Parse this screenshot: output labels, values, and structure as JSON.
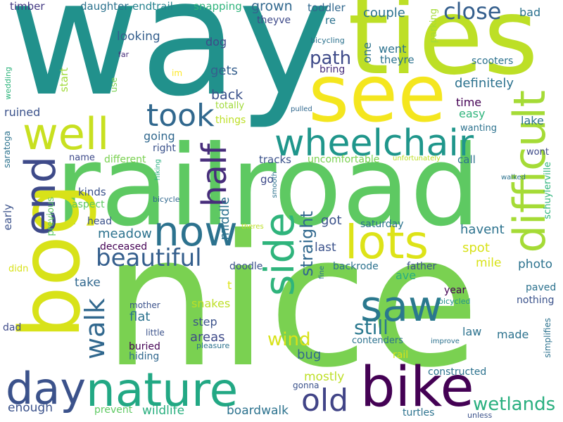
{
  "words": [
    {
      "id": "way",
      "text": "way",
      "color": "#21918c"
    },
    {
      "id": "ties",
      "text": "ties",
      "color": "#bddf26"
    },
    {
      "id": "see",
      "text": "see",
      "color": "#f4e61e"
    },
    {
      "id": "railroad",
      "text": "railroad",
      "color": "#5ec962"
    },
    {
      "id": "nice",
      "text": "nice",
      "color": "#7ad151"
    },
    {
      "id": "bog",
      "text": "bog",
      "color": "#d8e219"
    },
    {
      "id": "well",
      "text": "well",
      "color": "#c8e020"
    },
    {
      "id": "end",
      "text": "end",
      "color": "#3e4a89"
    },
    {
      "id": "took",
      "text": "took",
      "color": "#31688e"
    },
    {
      "id": "wheelchair",
      "text": "wheelchair",
      "color": "#1f968b"
    },
    {
      "id": "difficult",
      "text": "difficult",
      "color": "#a5db36"
    },
    {
      "id": "now",
      "text": "now",
      "color": "#2c728e"
    },
    {
      "id": "lots",
      "text": "lots",
      "color": "#dde318"
    },
    {
      "id": "half",
      "text": "half",
      "color": "#472d7b"
    },
    {
      "id": "side",
      "text": "side",
      "color": "#2fb47c"
    },
    {
      "id": "beautiful",
      "text": "beautiful",
      "color": "#355f8d"
    },
    {
      "id": "saw",
      "text": "saw",
      "color": "#2a788e"
    },
    {
      "id": "day",
      "text": "day",
      "color": "#3b528b"
    },
    {
      "id": "nature",
      "text": "nature",
      "color": "#22a884"
    },
    {
      "id": "bike",
      "text": "bike",
      "color": "#440154"
    },
    {
      "id": "walk",
      "text": "walk",
      "color": "#31688e"
    },
    {
      "id": "old",
      "text": "old",
      "color": "#414487"
    },
    {
      "id": "wetlands",
      "text": "wetlands",
      "color": "#29af7f"
    },
    {
      "id": "close",
      "text": "close",
      "color": "#355f8d"
    },
    {
      "id": "still",
      "text": "still",
      "color": "#2a788e"
    },
    {
      "id": "wind",
      "text": "wind",
      "color": "#d8e219"
    },
    {
      "id": "path",
      "text": "path",
      "color": "#3e4a89"
    },
    {
      "id": "straight",
      "text": "straight",
      "color": "#31688e"
    },
    {
      "id": "middle",
      "text": "middle",
      "color": "#2c728e"
    },
    {
      "id": "timber",
      "text": "timber",
      "color": "#443983"
    },
    {
      "id": "daughter",
      "text": "daughter",
      "color": "#2c728e"
    },
    {
      "id": "endtrail",
      "text": "endtrail",
      "color": "#26828e"
    },
    {
      "id": "snapping",
      "text": "snapping",
      "color": "#2fb47c"
    },
    {
      "id": "grown",
      "text": "grown",
      "color": "#31688e"
    },
    {
      "id": "theyve",
      "text": "theyve",
      "color": "#3e4a89"
    },
    {
      "id": "toddler",
      "text": "toddler",
      "color": "#31688e"
    },
    {
      "id": "re",
      "text": "re",
      "color": "#2c728e"
    },
    {
      "id": "couple",
      "text": "couple",
      "color": "#2c728e"
    },
    {
      "id": "parking",
      "text": "parking",
      "color": "#a5db36"
    },
    {
      "id": "bad",
      "text": "bad",
      "color": "#2c728e"
    },
    {
      "id": "looking",
      "text": "looking",
      "color": "#355f8d"
    },
    {
      "id": "dog",
      "text": "dog",
      "color": "#3e4a89"
    },
    {
      "id": "one",
      "text": "one",
      "color": "#2c728e"
    },
    {
      "id": "went",
      "text": "went",
      "color": "#2c728e"
    },
    {
      "id": "theyre",
      "text": "theyre",
      "color": "#2c728e"
    },
    {
      "id": "bicycling",
      "text": "bicycling",
      "color": "#2c728e"
    },
    {
      "id": "far",
      "text": "far",
      "color": "#472d7b"
    },
    {
      "id": "im",
      "text": "im",
      "color": "#fde725"
    },
    {
      "id": "use",
      "text": "use",
      "color": "#7ad151"
    },
    {
      "id": "start",
      "text": "start",
      "color": "#a0da39"
    },
    {
      "id": "gets",
      "text": "gets",
      "color": "#355f8d"
    },
    {
      "id": "bring",
      "text": "bring",
      "color": "#472d7b"
    },
    {
      "id": "scooters",
      "text": "scooters",
      "color": "#2c728e"
    },
    {
      "id": "definitely",
      "text": "definitely",
      "color": "#2c728e"
    },
    {
      "id": "back",
      "text": "back",
      "color": "#3b528b"
    },
    {
      "id": "time",
      "text": "time",
      "color": "#440154"
    },
    {
      "id": "easy",
      "text": "easy",
      "color": "#2fb47c"
    },
    {
      "id": "totally",
      "text": "totally",
      "color": "#a0da39"
    },
    {
      "id": "things",
      "text": "things",
      "color": "#bddf26"
    },
    {
      "id": "pulled",
      "text": "pulled",
      "color": "#31688e"
    },
    {
      "id": "wanting",
      "text": "wanting",
      "color": "#2c728e"
    },
    {
      "id": "lake",
      "text": "lake",
      "color": "#2c728e"
    },
    {
      "id": "saratoga",
      "text": "saratoga",
      "color": "#2c728e"
    },
    {
      "id": "wedding",
      "text": "wedding",
      "color": "#2fb47c"
    },
    {
      "id": "ruined",
      "text": "ruined",
      "color": "#3b528b"
    },
    {
      "id": "going",
      "text": "going",
      "color": "#31688e"
    },
    {
      "id": "right",
      "text": "right",
      "color": "#3b528b"
    },
    {
      "id": "name",
      "text": "name",
      "color": "#3e4a89"
    },
    {
      "id": "different",
      "text": "different",
      "color": "#7ad151"
    },
    {
      "id": "hiking",
      "text": "hiking",
      "color": "#29af7f"
    },
    {
      "id": "tracks",
      "text": "tracks",
      "color": "#3b528b"
    },
    {
      "id": "uncomfortable",
      "text": "uncomfortable",
      "color": "#7ad151"
    },
    {
      "id": "unfortunately",
      "text": "unfortunately",
      "color": "#bddf26"
    },
    {
      "id": "call",
      "text": "call",
      "color": "#2c728e"
    },
    {
      "id": "wont",
      "text": "wont",
      "color": "#3e4a89"
    },
    {
      "id": "schuylerville",
      "text": "schuylerville",
      "color": "#2fb47c"
    },
    {
      "id": "walked",
      "text": "walked",
      "color": "#2c728e"
    },
    {
      "id": "go",
      "text": "go",
      "color": "#3e4a89"
    },
    {
      "id": "smooth",
      "text": "smooth",
      "color": "#2c728e"
    },
    {
      "id": "early",
      "text": "early",
      "color": "#3b528b"
    },
    {
      "id": "previous",
      "text": "previous",
      "color": "#5ec962"
    },
    {
      "id": "kinds",
      "text": "kinds",
      "color": "#3b528b"
    },
    {
      "id": "aspect",
      "text": "aspect",
      "color": "#5ec962"
    },
    {
      "id": "bicycle",
      "text": "bicycle",
      "color": "#31688e"
    },
    {
      "id": "got",
      "text": "got",
      "color": "#3b528b"
    },
    {
      "id": "saturday",
      "text": "saturday",
      "color": "#2c728e"
    },
    {
      "id": "havent",
      "text": "havent",
      "color": "#2c728e"
    },
    {
      "id": "head",
      "text": "head",
      "color": "#3b528b"
    },
    {
      "id": "meadow",
      "text": "meadow",
      "color": "#2c728e"
    },
    {
      "id": "theres",
      "text": "theres",
      "color": "#bddf26"
    },
    {
      "id": "deceased",
      "text": "deceased",
      "color": "#440154"
    },
    {
      "id": "last",
      "text": "last",
      "color": "#3b528b"
    },
    {
      "id": "spot",
      "text": "spot",
      "color": "#d8e219"
    },
    {
      "id": "mile",
      "text": "mile",
      "color": "#d8e219"
    },
    {
      "id": "photo",
      "text": "photo",
      "color": "#2c728e"
    },
    {
      "id": "didn",
      "text": "didn",
      "color": "#d8e219"
    },
    {
      "id": "doodle",
      "text": "doodle",
      "color": "#3b528b"
    },
    {
      "id": "backrode",
      "text": "backrode",
      "color": "#2c728e"
    },
    {
      "id": "father",
      "text": "father",
      "color": "#3b528b"
    },
    {
      "id": "fine",
      "text": "fine",
      "color": "#2c728e"
    },
    {
      "id": "ave",
      "text": "ave",
      "color": "#29af7f"
    },
    {
      "id": "take",
      "text": "take",
      "color": "#31688e"
    },
    {
      "id": "t",
      "text": "t",
      "color": "#dde318"
    },
    {
      "id": "paved",
      "text": "paved",
      "color": "#2c728e"
    },
    {
      "id": "year",
      "text": "year",
      "color": "#440154"
    },
    {
      "id": "nothing",
      "text": "nothing",
      "color": "#3b528b"
    },
    {
      "id": "snakes",
      "text": "snakes",
      "color": "#bddf26"
    },
    {
      "id": "bicycled",
      "text": "bicycled",
      "color": "#21918c"
    },
    {
      "id": "mother",
      "text": "mother",
      "color": "#3b528b"
    },
    {
      "id": "flat",
      "text": "flat",
      "color": "#2c728e"
    },
    {
      "id": "step",
      "text": "step",
      "color": "#3b528b"
    },
    {
      "id": "law",
      "text": "law",
      "color": "#2c728e"
    },
    {
      "id": "made",
      "text": "made",
      "color": "#2c728e"
    },
    {
      "id": "dad",
      "text": "dad",
      "color": "#3e4a89"
    },
    {
      "id": "little",
      "text": "little",
      "color": "#3b528b"
    },
    {
      "id": "areas",
      "text": "areas",
      "color": "#3e4a89"
    },
    {
      "id": "contenders",
      "text": "contenders",
      "color": "#2c728e"
    },
    {
      "id": "simplifies",
      "text": "simplifies",
      "color": "#2c728e"
    },
    {
      "id": "buried",
      "text": "buried",
      "color": "#440154"
    },
    {
      "id": "pleasure",
      "text": "pleasure",
      "color": "#2c728e"
    },
    {
      "id": "improve",
      "text": "improve",
      "color": "#2c728e"
    },
    {
      "id": "hiding",
      "text": "hiding",
      "color": "#31688e"
    },
    {
      "id": "bug",
      "text": "bug",
      "color": "#31688e"
    },
    {
      "id": "rail",
      "text": "rail",
      "color": "#d8e219"
    },
    {
      "id": "constructed",
      "text": "constructed",
      "color": "#2c728e"
    },
    {
      "id": "mostly",
      "text": "mostly",
      "color": "#bddf26"
    },
    {
      "id": "gonna",
      "text": "gonna",
      "color": "#3b528b"
    },
    {
      "id": "enough",
      "text": "enough",
      "color": "#3b528b"
    },
    {
      "id": "prevent",
      "text": "prevent",
      "color": "#5ec962"
    },
    {
      "id": "wildlife",
      "text": "wildlife",
      "color": "#29af7f"
    },
    {
      "id": "boardwalk",
      "text": "boardwalk",
      "color": "#2c728e"
    },
    {
      "id": "turtles",
      "text": "turtles",
      "color": "#2c728e"
    },
    {
      "id": "unless",
      "text": "unless",
      "color": "#3b528b"
    }
  ]
}
